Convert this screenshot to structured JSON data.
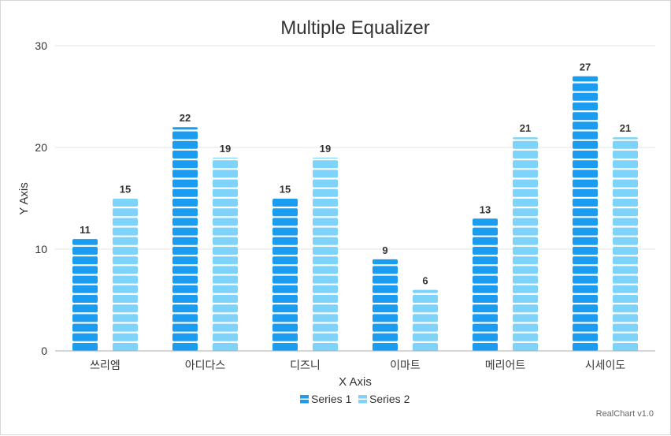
{
  "chart_data": {
    "type": "bar",
    "title": "Multiple Equalizer",
    "xlabel": "X Axis",
    "ylabel": "Y Axis",
    "categories": [
      "쓰리엠",
      "아디다스",
      "디즈니",
      "이마트",
      "메리어트",
      "시세이도"
    ],
    "series": [
      {
        "name": "Series 1",
        "values": [
          11,
          22,
          15,
          9,
          13,
          27
        ],
        "color": "#1a9cf0"
      },
      {
        "name": "Series 2",
        "values": [
          15,
          19,
          19,
          6,
          21,
          21
        ],
        "color": "#7dd3fa"
      }
    ],
    "ylim": [
      0,
      30
    ],
    "yticks": [
      0,
      10,
      20,
      30
    ],
    "grid": true,
    "legend_position": "bottom",
    "data_labels": true,
    "credit": "RealChart v1.0"
  }
}
